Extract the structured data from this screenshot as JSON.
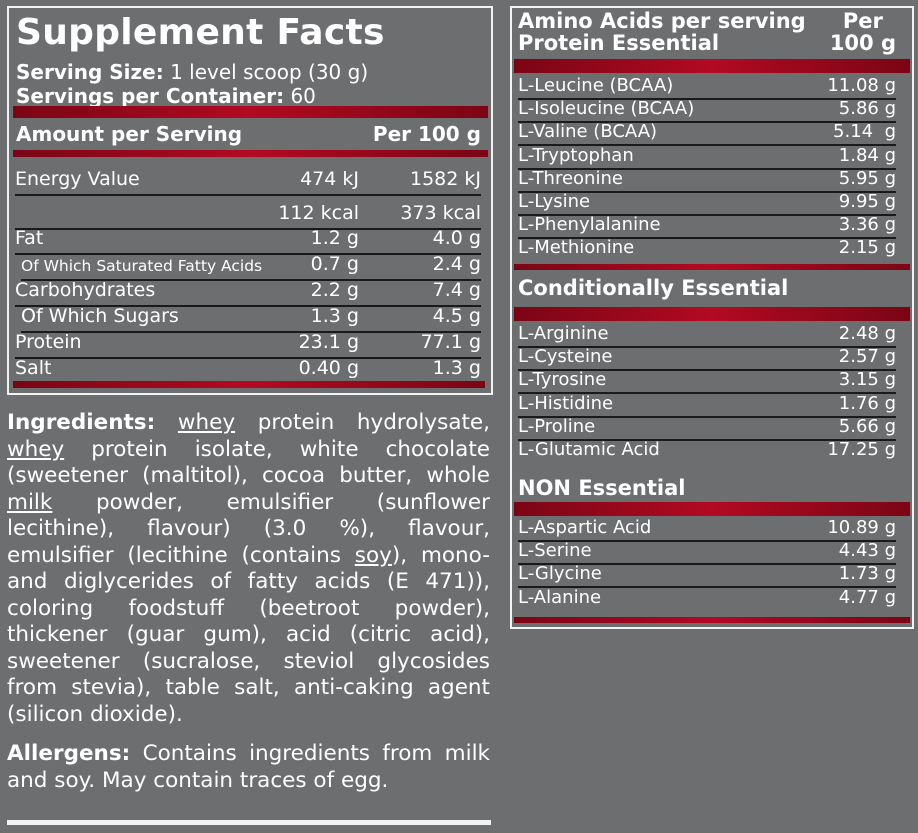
{
  "facts": {
    "title": "Supplement Facts",
    "serving_size_label": "Serving Size:",
    "serving_size": "1 level scoop (30 g)",
    "servings_label": "Servings per Container:",
    "servings": "60",
    "amount_header": "Amount per Serving",
    "per100_header": "Per 100 g",
    "rows": [
      {
        "label": "Energy Value",
        "serving": "474 kJ",
        "per100": "1582 kJ"
      },
      {
        "label": "",
        "serving": "112 kcal",
        "per100": "373 kcal"
      },
      {
        "label": "Fat",
        "serving": "1.2 g",
        "per100": "4.0 g"
      },
      {
        "label": "Of Which Saturated Fatty Acids",
        "serving": "0.7 g",
        "per100": "2.4 g"
      },
      {
        "label": "Carbohydrates",
        "serving": "2.2 g",
        "per100": "7.4 g"
      },
      {
        "label": "Of Which Sugars",
        "serving": "1.3 g",
        "per100": "4.5 g"
      },
      {
        "label": "Protein",
        "serving": "23.1 g",
        "per100": "77.1 g"
      },
      {
        "label": "Salt",
        "serving": "0.40 g",
        "per100": "1.3 g"
      }
    ]
  },
  "amino": {
    "header_line1": "Amino Acids per serving",
    "header_line2": "Protein Essential",
    "per_line1": "Per",
    "per_line2": "100 g",
    "essential": [
      [
        "L-Leucine (BCAA)",
        "11.08 g"
      ],
      [
        "L-Isoleucine (BCAA)",
        "5.86 g"
      ],
      [
        "L-Valine (BCAA)",
        "5.14  g"
      ],
      [
        "L-Tryptophan",
        "1.84 g"
      ],
      [
        "L-Threonine",
        "5.95 g"
      ],
      [
        "L-Lysine",
        "9.95 g"
      ],
      [
        "L-Phenylalanine",
        "3.36 g"
      ],
      [
        "L-Methionine",
        "2.15 g"
      ]
    ],
    "cond_title": "Conditionally Essential",
    "conditional": [
      [
        "L-Arginine",
        "2.48 g"
      ],
      [
        "L-Cysteine",
        "2.57 g"
      ],
      [
        "L-Tyrosine",
        "3.15 g"
      ],
      [
        "L-Histidine",
        "1.76 g"
      ],
      [
        "L-Proline",
        "5.66 g"
      ],
      [
        "L-Glutamic Acid",
        "17.25 g"
      ]
    ],
    "non_title": "NON Essential",
    "non": [
      [
        "L-Aspartic Acid",
        "10.89 g"
      ],
      [
        "L-Serine",
        "4.43 g"
      ],
      [
        "L-Glycine",
        "1.73 g"
      ],
      [
        "L-Alanine",
        "4.77 g"
      ]
    ]
  },
  "ingredients": {
    "label": "Ingredients:",
    "parts": [
      "whey",
      " protein hydrolysate, ",
      "whey",
      " protein isolate, white chocolate (sweetener (maltitol), cocoa butter, whole ",
      "milk",
      " powder, emulsifier (sunflower lecithine), flavour) (3.0 %), flavour, emulsifier (lecithine (contains ",
      "soy",
      "), mono- and diglycerides of fatty acids (E 471)), coloring foodstuff (beetroot powder), thickener (guar gum), acid (citric acid), sweetener (sucralose, steviol glycosides from stevia), table salt, anti-caking agent (silicon dioxide)."
    ]
  },
  "allergens": {
    "label": "Allergens:",
    "text": "Contains ingredients from milk and soy. May contain traces of egg."
  }
}
